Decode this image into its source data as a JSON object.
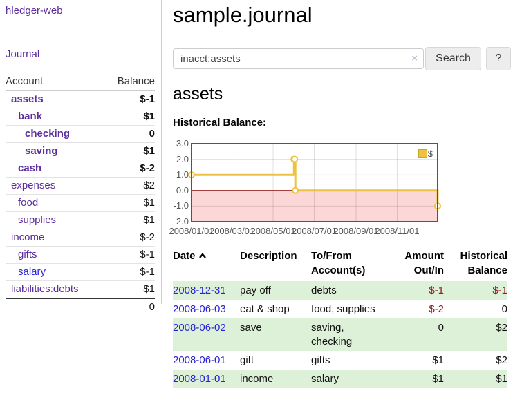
{
  "app": {
    "brand": "hledger-web",
    "nav_journal": "Journal"
  },
  "colors": {
    "link_purple": "#5b2d9e",
    "link_blue": "#2822d8",
    "negative_strong": "#8b1a22",
    "negative_soft": "#c17474",
    "negative_table": "#8f1d21",
    "row_shaded_green": "#ddf0d8",
    "series_yellow": "#edc240"
  },
  "sidebar": {
    "accounts_table": {
      "account_header": "Account",
      "balance_header": "Balance",
      "rows": [
        {
          "name": "assets",
          "balance": "$-1",
          "indent": 1,
          "bold": true,
          "balance_class": "neg-strong",
          "link_color": "purple"
        },
        {
          "name": "bank",
          "balance": "$1",
          "indent": 2,
          "bold": true,
          "balance_class": "",
          "link_color": "purple"
        },
        {
          "name": "checking",
          "balance": "0",
          "indent": 3,
          "bold": true,
          "balance_class": "",
          "link_color": "purple"
        },
        {
          "name": "saving",
          "balance": "$1",
          "indent": 3,
          "bold": true,
          "balance_class": "",
          "link_color": "purple"
        },
        {
          "name": "cash",
          "balance": "$-2",
          "indent": 2,
          "bold": true,
          "balance_class": "neg-strong",
          "link_color": "purple"
        },
        {
          "name": "expenses",
          "balance": "$2",
          "indent": 1,
          "bold": false,
          "balance_class": "",
          "link_color": "purple"
        },
        {
          "name": "food",
          "balance": "$1",
          "indent": 2,
          "bold": false,
          "balance_class": "",
          "link_color": "purple"
        },
        {
          "name": "supplies",
          "balance": "$1",
          "indent": 2,
          "bold": false,
          "balance_class": "",
          "link_color": "purple"
        },
        {
          "name": "income",
          "balance": "$-2",
          "indent": 1,
          "bold": false,
          "balance_class": "neg-soft",
          "link_color": "purple"
        },
        {
          "name": "gifts",
          "balance": "$-1",
          "indent": 2,
          "bold": false,
          "balance_class": "neg-soft",
          "link_color": "purple"
        },
        {
          "name": "salary",
          "balance": "$-1",
          "indent": 2,
          "bold": false,
          "balance_class": "neg-soft",
          "link_color": "blue"
        },
        {
          "name": "liabilities:debts",
          "balance": "$1",
          "indent": 1,
          "bold": false,
          "balance_class": "",
          "link_color": "purple"
        }
      ],
      "total": "0"
    }
  },
  "main": {
    "title": "sample.journal",
    "search": {
      "value": "inacct:assets",
      "clear_icon": "×",
      "button": "Search",
      "help_button": "?"
    },
    "account_heading": "assets",
    "chart_label": "Historical Balance:"
  },
  "chart_data": {
    "type": "line",
    "title": "Historical Balance",
    "xlabel": "",
    "ylabel": "",
    "grid": true,
    "steps": true,
    "xlim": [
      "2008-01-01",
      "2008-12-31"
    ],
    "ylim": [
      -2,
      3
    ],
    "y_ticks": [
      -2,
      -1,
      0,
      1,
      2,
      3
    ],
    "x_ticks": [
      {
        "date": "2008-01-01",
        "label": "2008/01/01"
      },
      {
        "date": "2008-03-01",
        "label": "2008/03/01"
      },
      {
        "date": "2008-05-01",
        "label": "2008/05/01"
      },
      {
        "date": "2008-07-01",
        "label": "2008/07/01"
      },
      {
        "date": "2008-09-01",
        "label": "2008/09/01"
      },
      {
        "date": "2008-11-01",
        "label": "2008/11/01"
      }
    ],
    "series": [
      {
        "name": "$",
        "color": "#edc240",
        "points": [
          [
            "2008-01-01",
            1
          ],
          [
            "2008-06-01",
            2
          ],
          [
            "2008-06-02",
            2
          ],
          [
            "2008-06-03",
            0
          ],
          [
            "2008-12-31",
            -1
          ]
        ]
      }
    ],
    "zero_line_color": "#8b0000",
    "negative_region_color": "#fbd7d7",
    "legend": {
      "label": "$",
      "position": "top-right"
    }
  },
  "register": {
    "headers": {
      "date": "Date",
      "description": "Description",
      "tofrom_line1": "To/From",
      "tofrom_line2": "Account(s)",
      "amount_line1": "Amount",
      "amount_line2": "Out/In",
      "balance_line1": "Historical",
      "balance_line2": "Balance"
    },
    "rows": [
      {
        "date": "2008-12-31",
        "description": "pay off",
        "tofrom": "debts",
        "amount": "$-1",
        "amount_class": "neg",
        "balance": "$-1",
        "balance_class": "neg",
        "shaded": true
      },
      {
        "date": "2008-06-03",
        "description": "eat & shop",
        "tofrom": "food, supplies",
        "amount": "$-2",
        "amount_class": "neg",
        "balance": "0",
        "balance_class": "",
        "shaded": false
      },
      {
        "date": "2008-06-02",
        "description": "save",
        "tofrom": "saving, checking",
        "amount": "0",
        "amount_class": "",
        "balance": "$2",
        "balance_class": "",
        "shaded": true
      },
      {
        "date": "2008-06-01",
        "description": "gift",
        "tofrom": "gifts",
        "amount": "$1",
        "amount_class": "",
        "balance": "$2",
        "balance_class": "",
        "shaded": false
      },
      {
        "date": "2008-01-01",
        "description": "income",
        "tofrom": "salary",
        "amount": "$1",
        "amount_class": "",
        "balance": "$1",
        "balance_class": "",
        "shaded": true
      }
    ]
  }
}
